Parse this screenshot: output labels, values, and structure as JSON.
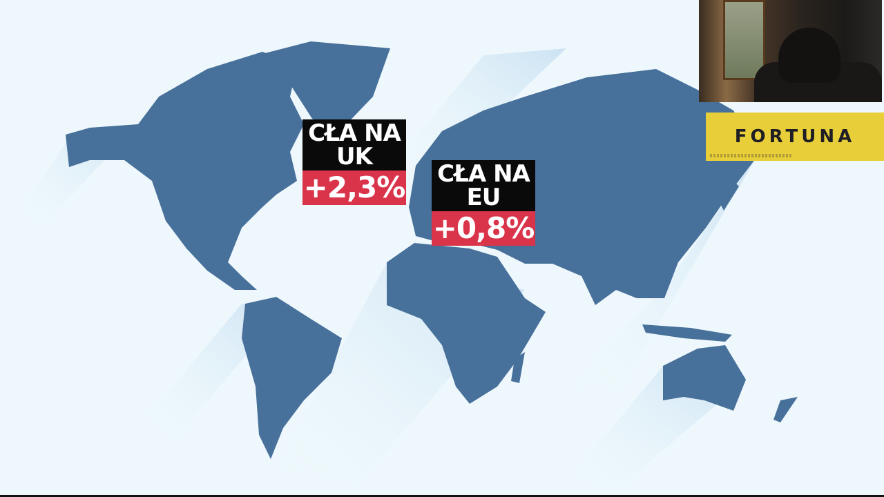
{
  "colors": {
    "land": "#47709a",
    "background": "#eef8fc",
    "label_black": "#0a0a0a",
    "label_red": "#d9344a",
    "sponsor_yellow": "#e8cf3a"
  },
  "labels": [
    {
      "title": "CŁA NA UK",
      "line1": "CŁA NA",
      "line2": "UK",
      "value": "+2,3%"
    },
    {
      "title": "CŁA NA EU",
      "line1": "CŁA NA",
      "line2": "EU",
      "value": "+0,8%"
    }
  ],
  "sponsor": {
    "logo": "FORTUNA"
  },
  "webcam": {
    "visible": true
  }
}
